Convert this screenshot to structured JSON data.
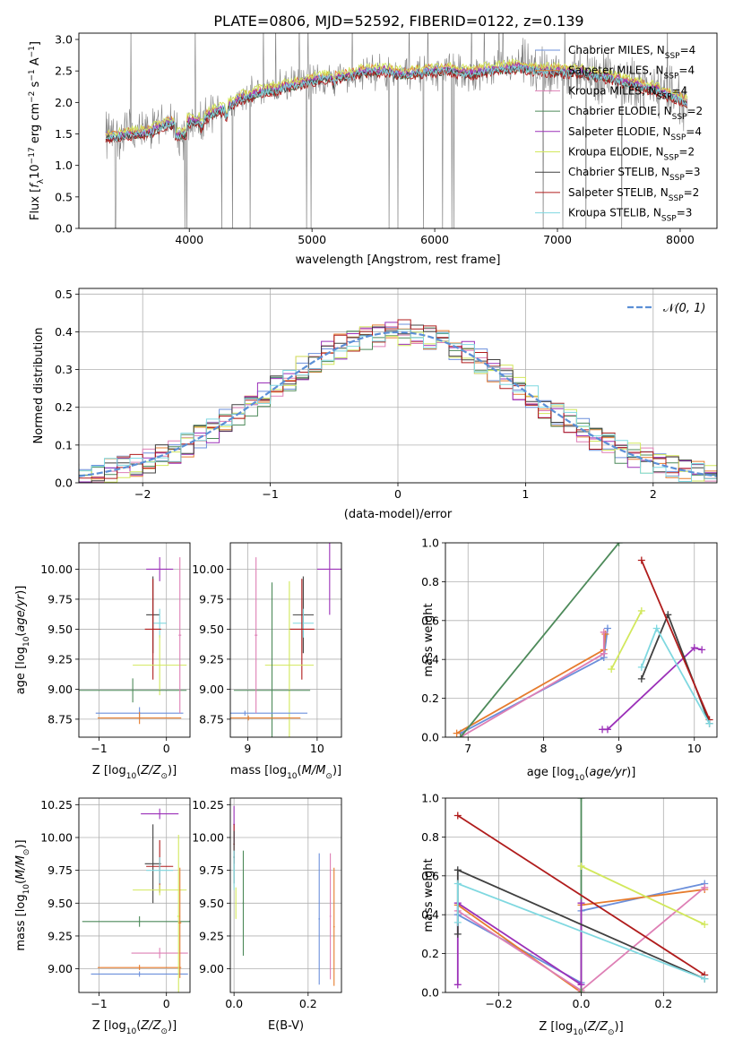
{
  "figure_title": "PLATE=0806, MJD=52592, FIBERID=0122, z=0.139",
  "chart_data": [
    {
      "id": "spectrum",
      "type": "line",
      "title": "PLATE=0806, MJD=52592, FIBERID=0122, z=0.139",
      "xlabel": "wavelength [Angstrom, rest frame]",
      "ylabel": "Flux [f_λ 10^-17 erg cm^-2 s^-1 A^-1]",
      "xlim": [
        3100,
        8300
      ],
      "ylim": [
        0,
        3.1
      ],
      "xticks": [
        4000,
        5000,
        6000,
        7000,
        8000
      ],
      "yticks": [
        0.0,
        0.5,
        1.0,
        1.5,
        2.0,
        2.5,
        3.0
      ],
      "data_color": "#808080",
      "continuum": {
        "x": [
          3320,
          3400,
          3500,
          3600,
          3700,
          3800,
          3900,
          4000,
          4100,
          4200,
          4300,
          4400,
          4500,
          4600,
          4700,
          4800,
          4900,
          5000,
          5100,
          5200,
          5300,
          5400,
          5500,
          5600,
          5700,
          5800,
          5900,
          6000,
          6100,
          6200,
          6300,
          6400,
          6500,
          6600,
          6700,
          6800,
          6900,
          7000,
          7100,
          7200,
          7300,
          7400,
          7500,
          7600,
          7700,
          7800,
          7900,
          8000,
          8060
        ],
        "y": [
          1.45,
          1.45,
          1.5,
          1.5,
          1.55,
          1.65,
          1.68,
          1.7,
          1.72,
          1.85,
          1.9,
          2.05,
          2.1,
          2.18,
          2.2,
          2.25,
          2.3,
          2.35,
          2.38,
          2.4,
          2.42,
          2.48,
          2.5,
          2.5,
          2.45,
          2.45,
          2.5,
          2.5,
          2.52,
          2.48,
          2.45,
          2.5,
          2.52,
          2.55,
          2.55,
          2.52,
          2.5,
          2.5,
          2.48,
          2.48,
          2.42,
          2.4,
          2.35,
          2.3,
          2.25,
          2.2,
          2.12,
          2.05,
          1.98
        ]
      },
      "series": [
        {
          "name": "Chabrier MILES, N_SSP=4",
          "color": "#6b8fdb",
          "offset": 0.03
        },
        {
          "name": "Salpeter MILES, N_SSP=4",
          "color": "#e67c2e",
          "offset": 0.05
        },
        {
          "name": "Kroupa MILES, N_SSP=4",
          "color": "#de7fb5",
          "offset": 0.0
        },
        {
          "name": "Chabrier ELODIE, N_SSP=2",
          "color": "#4d8a5a",
          "offset": -0.02
        },
        {
          "name": "Salpeter ELODIE, N_SSP=4",
          "color": "#9b30b8",
          "offset": 0.02
        },
        {
          "name": "Kroupa ELODIE, N_SSP=2",
          "color": "#d2e85c",
          "offset": 0.08
        },
        {
          "name": "Chabrier STELIB, N_SSP=3",
          "color": "#404040",
          "offset": -0.03
        },
        {
          "name": "Salpeter STELIB, N_SSP=2",
          "color": "#b01c1c",
          "offset": -0.05
        },
        {
          "name": "Kroupa STELIB, N_SSP=3",
          "color": "#7fd8e0",
          "offset": -0.01
        }
      ]
    },
    {
      "id": "residuals",
      "type": "line",
      "xlabel": "(data-model)/error",
      "ylabel": "Normed distribution",
      "xlim": [
        -2.5,
        2.5
      ],
      "ylim": [
        0,
        0.515
      ],
      "xticks": [
        -2,
        -1,
        0,
        1,
        2
      ],
      "yticks": [
        0.0,
        0.1,
        0.2,
        0.3,
        0.4,
        0.5
      ],
      "legend": "N(0,1)",
      "legend_color": "#5b8fd6",
      "bin_width": 0.1
    },
    {
      "id": "age_vs_Z",
      "type": "scatter",
      "xlabel": "Z [log10(Z/Z_sun)]",
      "ylabel": "age  [log10(age/yr)]",
      "xlim": [
        -1.3,
        0.35
      ],
      "ylim": [
        8.6,
        10.22
      ],
      "xticks": [
        -1,
        0
      ],
      "yticks": [
        8.75,
        9.0,
        9.25,
        9.5,
        9.75,
        10.0
      ],
      "points": [
        {
          "x": -0.1,
          "y": 10.0,
          "xerr": 0.2,
          "yerr": 0.1,
          "color": "#9b30b8"
        },
        {
          "x": -0.2,
          "y": 9.62,
          "xerr": 0.1,
          "yerr": 0.32,
          "color": "#404040"
        },
        {
          "x": -0.1,
          "y": 9.55,
          "xerr": 0.1,
          "yerr": 0.12,
          "color": "#7fd8e0"
        },
        {
          "x": -0.2,
          "y": 9.5,
          "xerr": 0.12,
          "yerr": 0.42,
          "color": "#b01c1c"
        },
        {
          "x": -0.1,
          "y": 9.2,
          "xerr": 0.4,
          "yerr": 0.25,
          "color": "#d2e85c"
        },
        {
          "x": -0.5,
          "y": 8.99,
          "xerr": 0.8,
          "yerr": 0.1,
          "color": "#4d8a5a"
        },
        {
          "x": -0.4,
          "y": 8.8,
          "xerr": 0.65,
          "yerr": 0.05,
          "color": "#6b8fdb"
        },
        {
          "x": -0.4,
          "y": 8.76,
          "xerr": 0.62,
          "yerr": 0.05,
          "color": "#e67c2e"
        },
        {
          "x": 0.2,
          "y": 9.45,
          "xerr": 0.02,
          "yerr": 0.65,
          "color": "#de7fb5"
        }
      ]
    },
    {
      "id": "age_vs_mass",
      "type": "scatter",
      "xlabel": "mass [log10(M/M_sun)]",
      "ylabel": "",
      "xlim": [
        8.75,
        10.35
      ],
      "ylim": [
        8.6,
        10.22
      ],
      "xticks": [
        9,
        10
      ],
      "yticks": [
        8.75,
        9.0,
        9.25,
        9.5,
        9.75,
        10.0
      ],
      "points": [
        {
          "x": 10.18,
          "y": 10.0,
          "xerr": 0.18,
          "yerr": 0.38,
          "color": "#9b30b8"
        },
        {
          "x": 9.8,
          "y": 9.62,
          "xerr": 0.15,
          "yerr": 0.32,
          "color": "#404040"
        },
        {
          "x": 9.8,
          "y": 9.55,
          "xerr": 0.15,
          "yerr": 0.12,
          "color": "#7fd8e0"
        },
        {
          "x": 9.78,
          "y": 9.5,
          "xerr": 0.18,
          "yerr": 0.42,
          "color": "#b01c1c"
        },
        {
          "x": 9.6,
          "y": 9.2,
          "xerr": 0.35,
          "yerr": 0.7,
          "color": "#d2e85c"
        },
        {
          "x": 9.35,
          "y": 8.99,
          "xerr": 0.55,
          "yerr": 0.9,
          "color": "#4d8a5a"
        },
        {
          "x": 8.96,
          "y": 8.8,
          "xerr": 0.9,
          "yerr": 0.02,
          "color": "#6b8fdb"
        },
        {
          "x": 9.01,
          "y": 8.76,
          "xerr": 0.75,
          "yerr": 0.02,
          "color": "#e67c2e"
        },
        {
          "x": 9.12,
          "y": 9.45,
          "xerr": 0.02,
          "yerr": 0.65,
          "color": "#de7fb5"
        }
      ]
    },
    {
      "id": "weight_vs_age",
      "type": "line",
      "xlabel": "age  [log10(age/yr)]",
      "ylabel": "mass weight",
      "xlim": [
        6.7,
        10.3
      ],
      "ylim": [
        0,
        1.0
      ],
      "xticks": [
        7,
        8,
        9,
        10
      ],
      "yticks": [
        0.0,
        0.2,
        0.4,
        0.6,
        0.8,
        1.0
      ],
      "series": [
        {
          "color": "#6b8fdb",
          "x": [
            6.9,
            8.8,
            8.85
          ],
          "y": [
            0.02,
            0.41,
            0.56
          ]
        },
        {
          "color": "#e67c2e",
          "x": [
            6.85,
            8.8,
            8.82
          ],
          "y": [
            0.02,
            0.45,
            0.53
          ]
        },
        {
          "color": "#de7fb5",
          "x": [
            6.9,
            8.8,
            8.8
          ],
          "y": [
            0.0,
            0.43,
            0.54
          ]
        },
        {
          "color": "#4d8a5a",
          "x": [
            6.9,
            9.0
          ],
          "y": [
            0.0,
            1.0
          ]
        },
        {
          "color": "#9b30b8",
          "x": [
            8.78,
            8.85,
            10.0,
            10.1
          ],
          "y": [
            0.04,
            0.04,
            0.46,
            0.45
          ]
        },
        {
          "color": "#d2e85c",
          "x": [
            8.9,
            9.3
          ],
          "y": [
            0.35,
            0.65
          ]
        },
        {
          "color": "#404040",
          "x": [
            9.3,
            9.65,
            10.2
          ],
          "y": [
            0.3,
            0.63,
            0.07
          ]
        },
        {
          "color": "#b01c1c",
          "x": [
            9.3,
            10.2
          ],
          "y": [
            0.91,
            0.09
          ]
        },
        {
          "color": "#7fd8e0",
          "x": [
            9.3,
            9.5,
            10.2
          ],
          "y": [
            0.36,
            0.56,
            0.07
          ]
        }
      ]
    },
    {
      "id": "mass_vs_Z",
      "type": "scatter",
      "xlabel": "Z [log10(Z/Z_sun)]",
      "ylabel": "mass [log10(M/M_sun)]",
      "xlim": [
        -1.3,
        0.35
      ],
      "ylim": [
        8.82,
        10.3
      ],
      "xticks": [
        -1,
        0
      ],
      "yticks": [
        9.0,
        9.25,
        9.5,
        9.75,
        10.0,
        10.25
      ],
      "points": [
        {
          "x": -0.1,
          "y": 10.18,
          "xerr": 0.28,
          "yerr": 0.04,
          "color": "#9b30b8"
        },
        {
          "x": -0.2,
          "y": 9.8,
          "xerr": 0.12,
          "yerr": 0.3,
          "color": "#404040"
        },
        {
          "x": -0.1,
          "y": 9.78,
          "xerr": 0.2,
          "yerr": 0.2,
          "color": "#b01c1c"
        },
        {
          "x": -0.1,
          "y": 9.75,
          "xerr": 0.2,
          "yerr": 0.1,
          "color": "#7fd8e0"
        },
        {
          "x": -0.1,
          "y": 9.6,
          "xerr": 0.4,
          "yerr": 0.04,
          "color": "#d2e85c"
        },
        {
          "x": -0.4,
          "y": 9.36,
          "xerr": 0.85,
          "yerr": 0.04,
          "color": "#4d8a5a"
        },
        {
          "x": -0.1,
          "y": 9.12,
          "xerr": 0.42,
          "yerr": 0.04,
          "color": "#de7fb5"
        },
        {
          "x": -0.4,
          "y": 9.01,
          "xerr": 0.62,
          "yerr": 0.02,
          "color": "#e67c2e"
        },
        {
          "x": -0.4,
          "y": 8.96,
          "xerr": 0.72,
          "yerr": 0.02,
          "color": "#6b8fdb"
        },
        {
          "x": 0.18,
          "y": 9.4,
          "xerr": 0.02,
          "yerr": 0.62,
          "color": "#d2e85c"
        },
        {
          "x": 0.2,
          "y": 9.35,
          "xerr": 0.02,
          "yerr": 0.42,
          "color": "#e67c2e"
        }
      ]
    },
    {
      "id": "mass_vs_EBV",
      "type": "scatter",
      "xlabel": "E(B-V)",
      "ylabel": "",
      "xlim": [
        -0.01,
        0.29
      ],
      "ylim": [
        8.82,
        10.3
      ],
      "xticks": [
        0.0,
        0.2
      ],
      "yticks": [
        9.0,
        9.25,
        9.5,
        9.75,
        10.0,
        10.25
      ],
      "points": [
        {
          "x": 0.0,
          "y": 10.1,
          "xerr": 0.002,
          "yerr": 0.14,
          "color": "#9b30b8"
        },
        {
          "x": 0.0,
          "y": 9.95,
          "xerr": 0.002,
          "yerr": 0.15,
          "color": "#b01c1c"
        },
        {
          "x": 0.0,
          "y": 9.85,
          "xerr": 0.002,
          "yerr": 0.2,
          "color": "#404040"
        },
        {
          "x": 0.0,
          "y": 9.75,
          "xerr": 0.002,
          "yerr": 0.15,
          "color": "#7fd8e0"
        },
        {
          "x": 0.005,
          "y": 9.5,
          "xerr": 0.002,
          "yerr": 0.12,
          "color": "#d2e85c"
        },
        {
          "x": 0.025,
          "y": 9.5,
          "xerr": 0.002,
          "yerr": 0.4,
          "color": "#4d8a5a"
        },
        {
          "x": 0.23,
          "y": 9.38,
          "xerr": 0.002,
          "yerr": 0.5,
          "color": "#6b8fdb"
        },
        {
          "x": 0.26,
          "y": 9.4,
          "xerr": 0.002,
          "yerr": 0.48,
          "color": "#de7fb5"
        },
        {
          "x": 0.27,
          "y": 9.32,
          "xerr": 0.002,
          "yerr": 0.45,
          "color": "#e67c2e"
        }
      ]
    },
    {
      "id": "weight_vs_Z",
      "type": "line",
      "xlabel": "Z [log10(Z/Z_sun)]",
      "ylabel": "mass weight",
      "xlim": [
        -0.33,
        0.33
      ],
      "ylim": [
        0,
        1.0
      ],
      "xticks": [
        -0.2,
        0.0,
        0.2
      ],
      "yticks": [
        0.0,
        0.2,
        0.4,
        0.6,
        0.8,
        1.0
      ],
      "series": [
        {
          "color": "#6b8fdb",
          "x": [
            -0.3,
            0.0,
            0.0,
            0.3
          ],
          "y": [
            0.4,
            0.05,
            0.42,
            0.56
          ]
        },
        {
          "color": "#e67c2e",
          "x": [
            -0.3,
            0.0,
            0.0,
            0.3
          ],
          "y": [
            0.45,
            0.0,
            0.45,
            0.53
          ]
        },
        {
          "color": "#de7fb5",
          "x": [
            -0.3,
            0.0,
            0.3
          ],
          "y": [
            0.42,
            0.01,
            0.54
          ]
        },
        {
          "color": "#4d8a5a",
          "x": [
            0.0,
            0.0
          ],
          "y": [
            0.0,
            1.0
          ]
        },
        {
          "color": "#9b30b8",
          "x": [
            -0.3,
            -0.3,
            0.0,
            0.0
          ],
          "y": [
            0.04,
            0.46,
            0.04,
            0.46
          ]
        },
        {
          "color": "#d2e85c",
          "x": [
            0.0,
            0.3
          ],
          "y": [
            0.65,
            0.35
          ]
        },
        {
          "color": "#404040",
          "x": [
            -0.3,
            -0.3,
            0.3
          ],
          "y": [
            0.3,
            0.63,
            0.07
          ]
        },
        {
          "color": "#b01c1c",
          "x": [
            -0.3,
            0.3
          ],
          "y": [
            0.91,
            0.09
          ]
        },
        {
          "color": "#7fd8e0",
          "x": [
            -0.3,
            -0.3,
            0.3
          ],
          "y": [
            0.36,
            0.56,
            0.07
          ]
        }
      ]
    }
  ]
}
